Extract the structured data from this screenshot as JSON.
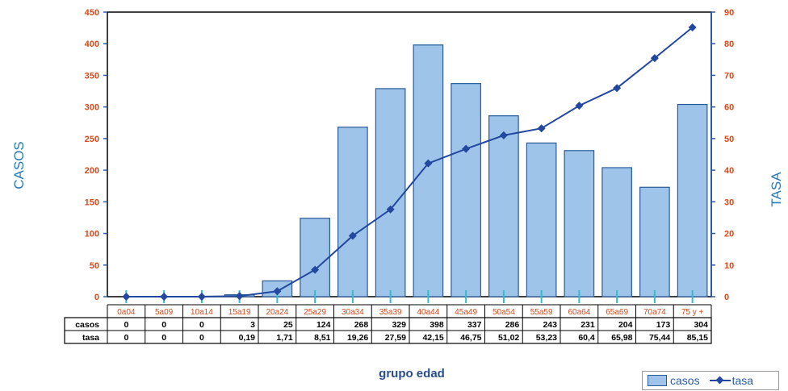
{
  "chart_data": {
    "type": "bar",
    "xlabel": "grupo edad",
    "ylabel": "CASOS",
    "y2label": "TASA",
    "ylim": [
      0,
      450
    ],
    "y2lim": [
      0,
      90
    ],
    "yticks": [
      "0",
      "50",
      "100",
      "150",
      "200",
      "250",
      "300",
      "350",
      "400",
      "450"
    ],
    "y2ticks": [
      "0",
      "10",
      "20",
      "30",
      "40",
      "50",
      "60",
      "70",
      "80",
      "90"
    ],
    "categories": [
      "0a04",
      "5a09",
      "10a14",
      "15a19",
      "20a24",
      "25a29",
      "30a34",
      "35a39",
      "40a44",
      "45a49",
      "50a54",
      "55a59",
      "60a64",
      "65a69",
      "70a74",
      "75 y +"
    ],
    "series": [
      {
        "name": "casos",
        "type": "bar",
        "axis": "left",
        "color": "#9fc4ea",
        "values": [
          0,
          0,
          0,
          3,
          25,
          124,
          268,
          329,
          398,
          337,
          286,
          243,
          231,
          204,
          173,
          304
        ]
      },
      {
        "name": "tasa",
        "type": "line",
        "axis": "right",
        "color": "#2248a0",
        "values": [
          0,
          0,
          0,
          0.19,
          1.71,
          8.51,
          19.26,
          27.59,
          42.15,
          46.75,
          51.02,
          53.23,
          60.4,
          65.98,
          75.44,
          85.15
        ]
      }
    ],
    "table": {
      "rows": [
        {
          "label": "casos",
          "cells": [
            "0",
            "0",
            "0",
            "3",
            "25",
            "124",
            "268",
            "329",
            "398",
            "337",
            "286",
            "243",
            "231",
            "204",
            "173",
            "304"
          ]
        },
        {
          "label": "tasa",
          "cells": [
            "0",
            "0",
            "0",
            "0,19",
            "1,71",
            "8,51",
            "19,26",
            "27,59",
            "42,15",
            "46,75",
            "51,02",
            "53,23",
            "60,4",
            "65,98",
            "75,44",
            "85,15"
          ]
        }
      ]
    },
    "legend": {
      "position": "bottom-right",
      "items": [
        "casos",
        "tasa"
      ]
    },
    "grid": false
  }
}
